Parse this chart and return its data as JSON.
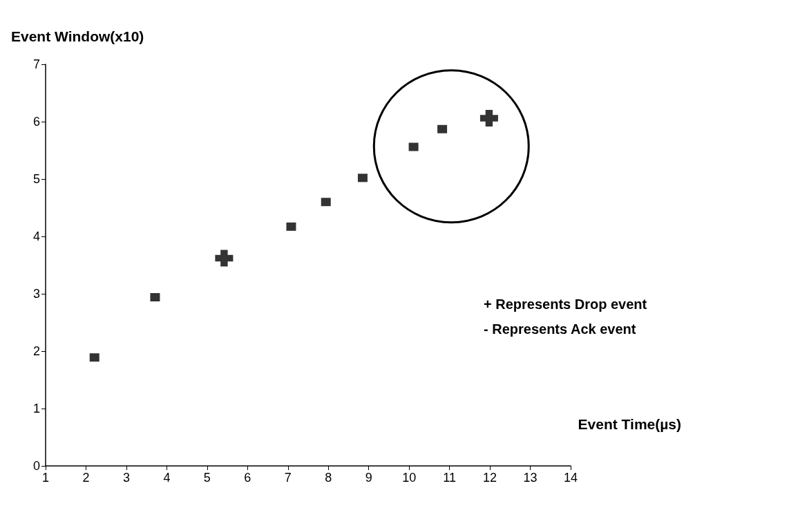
{
  "chart_data": {
    "type": "scatter",
    "xlabel": "Event Time(µs)",
    "ylabel": "Event Window(x10)",
    "series": [
      {
        "marker": "square",
        "color": "#000000",
        "x": [
          2.21,
          3.71,
          7.08,
          7.94,
          8.85,
          10.11,
          10.82
        ],
        "values": [
          1.89,
          2.94,
          4.17,
          4.6,
          5.02,
          5.56,
          5.87
        ]
      },
      {
        "marker": "cross",
        "color": "#000000",
        "x": [
          5.42,
          11.98
        ],
        "values": [
          3.62,
          6.06
        ]
      }
    ],
    "xlim": [
      1,
      14
    ],
    "xticks": [
      1,
      2,
      3,
      4,
      5,
      6,
      7,
      8,
      9,
      10,
      11,
      12,
      13,
      14
    ],
    "ylim": [
      0,
      7
    ],
    "yticks": [
      0,
      1,
      2,
      3,
      4,
      5,
      6,
      7
    ],
    "grid": false,
    "annotations": [
      "+ Represents Drop event",
      "- Represents Ack event"
    ]
  }
}
